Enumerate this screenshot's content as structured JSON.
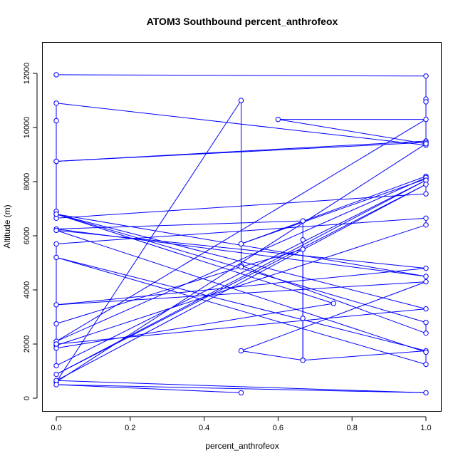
{
  "chart_data": {
    "type": "line",
    "title": "ATOM3 Southbound percent_anthrofeox",
    "xlabel": "percent_anthrofeox",
    "ylabel": "Altitude (m)",
    "xlim": [
      0,
      1
    ],
    "ylim": [
      0,
      12500
    ],
    "x_ticks": [
      "0.0",
      "0.2",
      "0.4",
      "0.6",
      "0.8",
      "1.0"
    ],
    "x_tick_values": [
      0,
      0.2,
      0.4,
      0.6,
      0.8,
      1.0
    ],
    "y_ticks": [
      "0",
      "2000",
      "4000",
      "6000",
      "8000",
      "10000",
      "12000"
    ],
    "y_tick_values": [
      0,
      2000,
      4000,
      6000,
      8000,
      10000,
      12000
    ],
    "grid": false,
    "legend": "none",
    "marker": "open-circle",
    "color": "#0000ff",
    "series": [
      {
        "x": [
          0,
          1,
          1,
          1,
          1,
          0,
          0,
          0,
          1,
          1,
          0,
          0,
          0,
          1,
          1,
          0.5,
          1,
          1,
          0,
          1,
          0.6,
          1,
          0,
          0.5,
          0.5,
          1,
          1,
          0,
          1,
          0,
          0.667,
          0.667,
          1,
          0,
          1,
          1,
          0,
          1,
          0,
          1,
          0.5,
          0.667,
          0.667,
          0.667,
          0.667,
          0.5,
          0,
          0,
          1,
          1,
          0,
          0,
          0.75,
          0,
          1,
          0,
          0,
          1,
          0,
          1,
          0,
          1,
          0,
          0.5
        ],
        "y": [
          11950,
          11900,
          11050,
          10950,
          9350,
          10900,
          10250,
          8750,
          9500,
          9450,
          8750,
          6900,
          6650,
          7550,
          8100,
          5700,
          8200,
          8150,
          2100,
          10300,
          10300,
          9400,
          600,
          11000,
          4900,
          2400,
          2800,
          6800,
          4500,
          6250,
          6550,
          1400,
          1750,
          5200,
          1250,
          1700,
          6200,
          4800,
          3450,
          4300,
          1750,
          1400,
          2950,
          5850,
          5500,
          4850,
          2750,
          1950,
          6400,
          6650,
          5700,
          1850,
          3500,
          6800,
          3300,
          2000,
          1200,
          8050,
          880,
          7900,
          650,
          200,
          500,
          200
        ]
      }
    ]
  }
}
